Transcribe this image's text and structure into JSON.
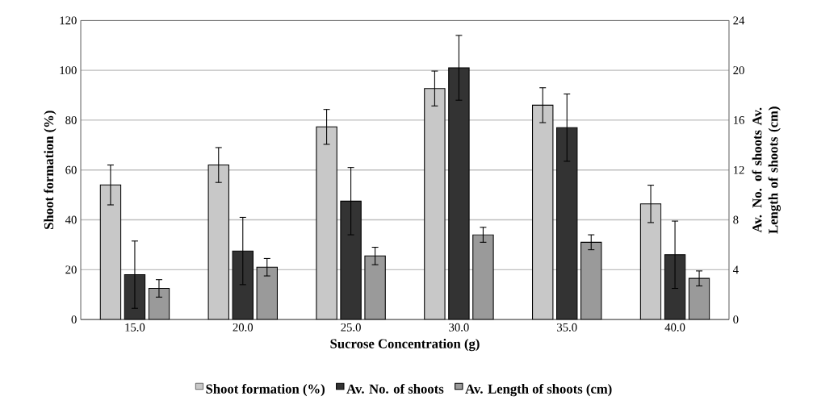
{
  "chart_data": {
    "type": "bar",
    "xlabel": "Sucrose Concentration (g)",
    "ylabel": "Shoot formation (%)",
    "y2label": "Av. No. of shoots Av. Length of shoots (cm)",
    "categories": [
      "15.0",
      "20.0",
      "25.0",
      "30.0",
      "35.0",
      "40.0"
    ],
    "series": [
      {
        "name": "Shoot formation (%)",
        "color": "#c8c8c8",
        "values": [
          54,
          62,
          77.3,
          92.7,
          86,
          46.4
        ],
        "errors": [
          8,
          7,
          7,
          7,
          7,
          7.5
        ]
      },
      {
        "name": "Av. No. of shoots",
        "color": "#333333",
        "axis": "y2",
        "values": [
          3.6,
          5.5,
          9.5,
          20.2,
          15.4,
          5.2
        ],
        "errors": [
          2.7,
          2.7,
          2.7,
          2.6,
          2.7,
          2.7
        ]
      },
      {
        "name": "Av. Length of shoots (cm)",
        "color": "#9a9a9a",
        "axis": "y2",
        "values": [
          2.5,
          4.2,
          5.1,
          6.8,
          6.2,
          3.3
        ],
        "errors": [
          0.7,
          0.7,
          0.7,
          0.6,
          0.6,
          0.6
        ]
      }
    ],
    "ylim": [
      0,
      120
    ],
    "yticks": [
      0,
      20,
      40,
      60,
      80,
      100,
      120
    ],
    "y2lim": [
      0,
      24
    ],
    "y2ticks": [
      0,
      4,
      8,
      12,
      16,
      20,
      24
    ],
    "grid": "y",
    "legend": "bottom"
  }
}
